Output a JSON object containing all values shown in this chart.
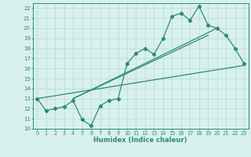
{
  "xlabel": "Humidex (Indice chaleur)",
  "x_values": [
    0,
    1,
    2,
    3,
    4,
    5,
    6,
    7,
    8,
    9,
    10,
    11,
    12,
    13,
    14,
    15,
    16,
    17,
    18,
    19,
    20,
    21,
    22,
    23
  ],
  "y_main": [
    13.0,
    11.8,
    12.0,
    12.2,
    12.8,
    10.9,
    10.3,
    12.3,
    12.8,
    13.0,
    16.5,
    17.5,
    18.0,
    17.4,
    19.0,
    21.2,
    21.5,
    20.8,
    22.2,
    20.3,
    20.0,
    19.3,
    18.0,
    16.5
  ],
  "line_color": "#2e8b74",
  "bg_color": "#d8f0ee",
  "grid_color": "#b8ddd9",
  "ylim": [
    10,
    22.5
  ],
  "xlim": [
    -0.5,
    23.5
  ],
  "yticks": [
    10,
    11,
    12,
    13,
    14,
    15,
    16,
    17,
    18,
    19,
    20,
    21,
    22
  ],
  "xticks": [
    0,
    1,
    2,
    3,
    4,
    5,
    6,
    7,
    8,
    9,
    10,
    11,
    12,
    13,
    14,
    15,
    16,
    17,
    18,
    19,
    20,
    21,
    22,
    23
  ],
  "straight_lines": [
    {
      "x1": 0,
      "y1": 13.0,
      "x2": 23,
      "y2": 16.3
    },
    {
      "x1": 4,
      "y1": 13.0,
      "x2": 20,
      "y2": 20.0
    },
    {
      "x1": 4,
      "y1": 13.0,
      "x2": 19,
      "y2": 19.3
    }
  ]
}
